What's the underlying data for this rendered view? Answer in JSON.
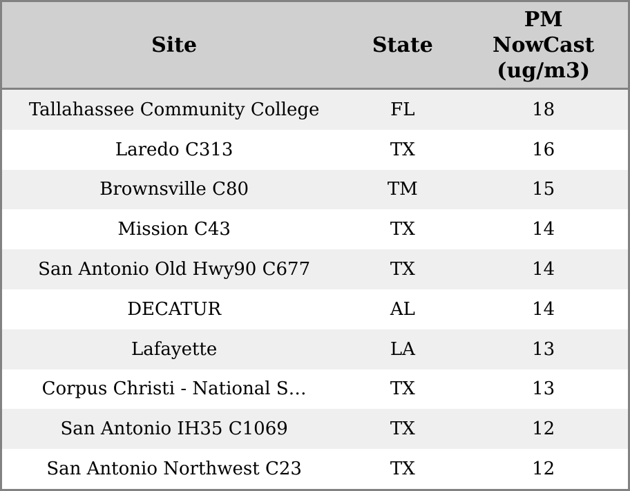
{
  "chart_data": {
    "type": "table",
    "columns": [
      "Site",
      "State",
      "PM NowCast (ug/m3)"
    ],
    "pm_header_lines": [
      "PM",
      "NowCast",
      "(ug/m3)"
    ],
    "rows": [
      [
        "Tallahassee Community College",
        "FL",
        18
      ],
      [
        "Laredo C313",
        "TX",
        16
      ],
      [
        "Brownsville C80",
        "TM",
        15
      ],
      [
        "Mission C43",
        "TX",
        14
      ],
      [
        "San Antonio Old Hwy90 C677",
        "TX",
        14
      ],
      [
        "DECATUR",
        "AL",
        14
      ],
      [
        "Lafayette",
        "LA",
        13
      ],
      [
        "Corpus Christi - National S…",
        "TX",
        13
      ],
      [
        "San Antonio IH35 C1069",
        "TX",
        12
      ],
      [
        "San Antonio Northwest C23",
        "TX",
        12
      ]
    ],
    "units": "ug/m3",
    "legend_position": "none",
    "grid": false
  },
  "colors": {
    "header_bg": "#d0d0d0",
    "border": "#828282",
    "row_bg": "#ffffff",
    "row_alt_bg": "#efefef",
    "text": "#000000"
  }
}
